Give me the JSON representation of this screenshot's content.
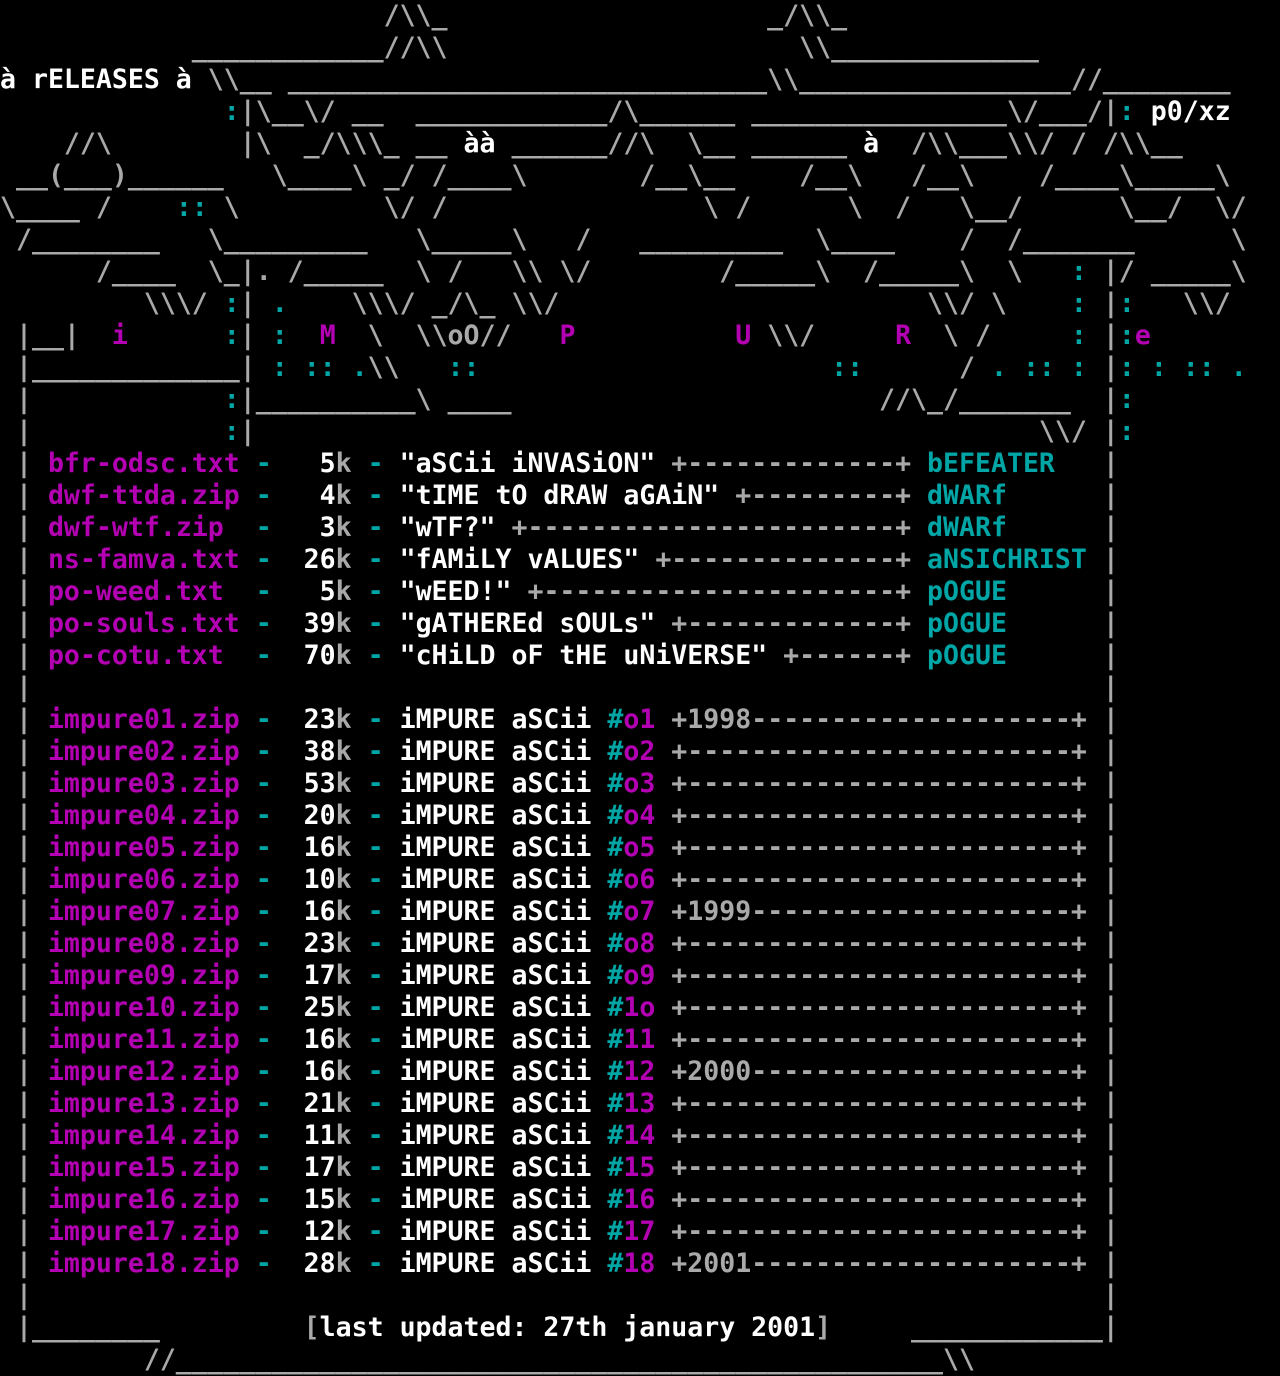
{
  "palette": {
    "bg": "#000000",
    "g": "#a9a9a9",
    "w": "#ffffff",
    "t": "#00a5a5",
    "m": "#b300b3"
  },
  "header": {
    "releases_label": "à rELEASES à",
    "signature": "p0/xz",
    "logo_letters": [
      "i",
      "M",
      "P",
      "U",
      "R",
      "e"
    ],
    "art_rows": [
      [
        [
          "g",
          "                        /\\\\_                    _/\\\\_"
        ]
      ],
      [
        [
          "g",
          "            ____________//\\\\                      \\\\_____________"
        ]
      ],
      [
        [
          "w",
          "à rELEASES à"
        ],
        [
          "g",
          " \\\\__ ______________________________\\\\_________________//________"
        ]
      ],
      [
        [
          "g",
          "              "
        ],
        [
          "t",
          ":"
        ],
        [
          "g",
          "|\\__\\/ __  ____________/\\______ ________________\\/___/|"
        ],
        [
          "t",
          ":"
        ],
        [
          "g",
          " "
        ],
        [
          "w",
          "p0/xz"
        ]
      ],
      [
        [
          "g",
          "    //\\        |\\  _/\\\\\\_ __ "
        ],
        [
          "w",
          "àà"
        ],
        [
          "g",
          " ______//\\  \\__ ______ "
        ],
        [
          "w",
          "à"
        ],
        [
          "g",
          "  /\\\\___\\\\/ / /\\\\__"
        ]
      ],
      [
        [
          "g",
          " __(___)______   \\____\\ _/ /____\\       /__\\__    /__\\   /__\\    /____\\_____\\"
        ]
      ],
      [
        [
          "g",
          "\\____ /    "
        ],
        [
          "t",
          "::"
        ],
        [
          "g",
          " \\         \\/ /                \\ /      \\  /   \\__/      \\__/  \\/"
        ]
      ],
      [
        [
          "g",
          " /________   \\_________   \\_____\\   /   _________  \\____    /  /_______      \\"
        ]
      ],
      [
        [
          "g",
          "      /____  \\_|. /_____  \\ /   \\\\ \\/        /_____\\  /_____\\  \\   "
        ],
        [
          "t",
          ":"
        ],
        [
          "g",
          " |/ _____\\"
        ]
      ],
      [
        [
          "g",
          "         \\\\\\/ "
        ],
        [
          "t",
          ":"
        ],
        [
          "g",
          "| "
        ],
        [
          "t",
          "."
        ],
        [
          "g",
          "    \\\\\\/ _/\\_ \\\\/                       \\\\/ \\    "
        ],
        [
          "t",
          ":"
        ],
        [
          "g",
          " |"
        ],
        [
          "t",
          ":"
        ],
        [
          "g",
          "   \\\\/"
        ]
      ],
      [
        [
          "g",
          " |__|  "
        ],
        [
          "m",
          "i"
        ],
        [
          "g",
          "      "
        ],
        [
          "t",
          ":"
        ],
        [
          "g",
          "| "
        ],
        [
          "t",
          ":"
        ],
        [
          "g",
          "  "
        ],
        [
          "m",
          "M"
        ],
        [
          "g",
          "  \\  \\\\oO//   "
        ],
        [
          "m",
          "P"
        ],
        [
          "g",
          "          "
        ],
        [
          "m",
          "U"
        ],
        [
          "g",
          " \\\\/     "
        ],
        [
          "m",
          "R"
        ],
        [
          "g",
          "  \\ /     "
        ],
        [
          "t",
          ":"
        ],
        [
          "g",
          " |"
        ],
        [
          "t",
          ":"
        ],
        [
          "m",
          "e"
        ]
      ],
      [
        [
          "g",
          " |_____________| "
        ],
        [
          "t",
          ":"
        ],
        [
          "g",
          " "
        ],
        [
          "t",
          "::"
        ],
        [
          "g",
          " "
        ],
        [
          "t",
          "."
        ],
        [
          "g",
          "\\\\   "
        ],
        [
          "t",
          "::"
        ],
        [
          "g",
          "                      "
        ],
        [
          "t",
          "::"
        ],
        [
          "g",
          "      / "
        ],
        [
          "t",
          "."
        ],
        [
          "g",
          " "
        ],
        [
          "t",
          "::"
        ],
        [
          "g",
          " "
        ],
        [
          "t",
          ":"
        ],
        [
          "g",
          " |"
        ],
        [
          "t",
          ":"
        ],
        [
          "g",
          " "
        ],
        [
          "t",
          ":"
        ],
        [
          "g",
          " "
        ],
        [
          "t",
          "::"
        ],
        [
          "g",
          " "
        ],
        [
          "t",
          "."
        ]
      ],
      [
        [
          "g",
          " |            "
        ],
        [
          "t",
          ":"
        ],
        [
          "g",
          "|__________\\ ____                       //\\_/_______  |"
        ],
        [
          "t",
          ":"
        ]
      ],
      [
        [
          "g",
          " |            "
        ],
        [
          "t",
          ":"
        ],
        [
          "g",
          "|                                                 \\\\/ |"
        ],
        [
          "t",
          ":"
        ]
      ]
    ],
    "bottom_art_row": "         //________________________________________________\\\\"
  },
  "releases": {
    "rows": [
      {
        "file": "bfr-odsc.txt",
        "size": "5k",
        "title": "\"aSCii iNVASiON\"",
        "artist": "bEFEATER"
      },
      {
        "file": "dwf-ttda.zip",
        "size": "4k",
        "title": "\"tIME tO dRAW aGAiN\"",
        "artist": "dWARf"
      },
      {
        "file": "dwf-wtf.zip",
        "size": "3k",
        "title": "\"wTF?\"",
        "artist": "dWARf"
      },
      {
        "file": "ns-famva.txt",
        "size": "26k",
        "title": "\"fAMiLY vALUES\"",
        "artist": "aNSICHRIST"
      },
      {
        "file": "po-weed.txt",
        "size": "5k",
        "title": "\"wEED!\"",
        "artist": "pOGUE"
      },
      {
        "file": "po-souls.txt",
        "size": "39k",
        "title": "\"gATHEREd sOULs\"",
        "artist": "pOGUE"
      },
      {
        "file": "po-cotu.txt",
        "size": "70k",
        "title": "\"cHiLD oF tHE uNiVERSE\"",
        "artist": "pOGUE"
      }
    ]
  },
  "impure": {
    "series_title": "iMPURE aSCii",
    "rows": [
      {
        "file": "impure01.zip",
        "size": "23k",
        "number": "o1",
        "year": "1998"
      },
      {
        "file": "impure02.zip",
        "size": "38k",
        "number": "o2"
      },
      {
        "file": "impure03.zip",
        "size": "53k",
        "number": "o3"
      },
      {
        "file": "impure04.zip",
        "size": "20k",
        "number": "o4"
      },
      {
        "file": "impure05.zip",
        "size": "16k",
        "number": "o5"
      },
      {
        "file": "impure06.zip",
        "size": "10k",
        "number": "o6"
      },
      {
        "file": "impure07.zip",
        "size": "16k",
        "number": "o7",
        "year": "1999"
      },
      {
        "file": "impure08.zip",
        "size": "23k",
        "number": "o8"
      },
      {
        "file": "impure09.zip",
        "size": "17k",
        "number": "o9"
      },
      {
        "file": "impure10.zip",
        "size": "25k",
        "number": "1o"
      },
      {
        "file": "impure11.zip",
        "size": "16k",
        "number": "11"
      },
      {
        "file": "impure12.zip",
        "size": "16k",
        "number": "12",
        "year": "2000"
      },
      {
        "file": "impure13.zip",
        "size": "21k",
        "number": "13"
      },
      {
        "file": "impure14.zip",
        "size": "11k",
        "number": "14"
      },
      {
        "file": "impure15.zip",
        "size": "17k",
        "number": "15"
      },
      {
        "file": "impure16.zip",
        "size": "15k",
        "number": "16"
      },
      {
        "file": "impure17.zip",
        "size": "12k",
        "number": "17"
      },
      {
        "file": "impure18.zip",
        "size": "28k",
        "number": "18",
        "year": "2001"
      }
    ]
  },
  "footer": {
    "last_updated": "[last updated: 27th january 2001]"
  }
}
